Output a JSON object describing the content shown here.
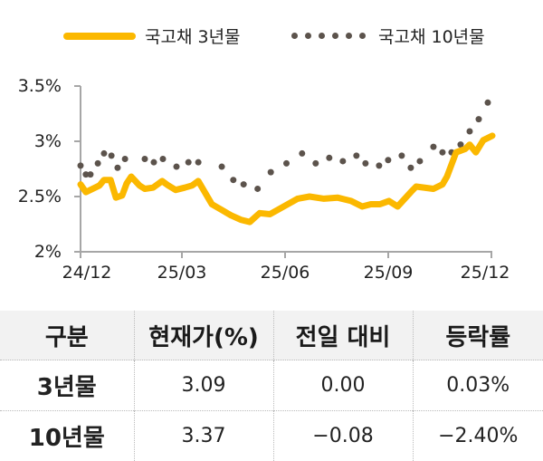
{
  "legend": {
    "series_3y": "국고채 3년물",
    "series_10y": "국고채 10년물"
  },
  "colors": {
    "series_3y": "#FBB800",
    "series_10y": "#5C534C",
    "axis": "#A6A6A6",
    "table_header_bg": "#F2F2F2"
  },
  "chart_data": {
    "type": "line",
    "title": "",
    "xlabel": "",
    "ylabel": "",
    "ylim": [
      2.0,
      3.5
    ],
    "yticks": [
      "2%",
      "2.5%",
      "3%",
      "3.5%"
    ],
    "xticks": [
      "24/12",
      "25/03",
      "25/06",
      "25/09",
      "25/12"
    ],
    "legend_position": "top",
    "grid": false,
    "series": [
      {
        "name": "국고채 3년물",
        "style": "solid",
        "x": [
          0.0,
          0.013,
          0.046,
          0.057,
          0.073,
          0.086,
          0.101,
          0.112,
          0.123,
          0.143,
          0.156,
          0.176,
          0.198,
          0.213,
          0.231,
          0.253,
          0.271,
          0.286,
          0.319,
          0.347,
          0.365,
          0.389,
          0.411,
          0.435,
          0.46,
          0.527,
          0.556,
          0.591,
          0.624,
          0.657,
          0.684,
          0.705,
          0.727,
          0.749,
          0.77,
          0.802,
          0.815,
          0.857,
          0.879,
          0.89,
          0.912,
          0.934,
          0.945,
          0.96,
          0.978,
          1.0
        ],
        "values": [
          2.61,
          2.54,
          2.6,
          2.65,
          2.65,
          2.49,
          2.51,
          2.62,
          2.68,
          2.6,
          2.57,
          2.58,
          2.64,
          2.6,
          2.56,
          2.58,
          2.6,
          2.64,
          2.43,
          2.37,
          2.33,
          2.29,
          2.27,
          2.35,
          2.34,
          2.48,
          2.5,
          2.48,
          2.49,
          2.46,
          2.41,
          2.43,
          2.43,
          2.46,
          2.41,
          2.54,
          2.59,
          2.57,
          2.61,
          2.68,
          2.9,
          2.93,
          2.97,
          2.9,
          3.01,
          3.05
        ]
      },
      {
        "name": "국고채 10년물",
        "style": "dotted",
        "x": [
          0.0,
          0.013,
          0.024,
          0.042,
          0.057,
          0.075,
          0.09,
          0.108,
          0.156,
          0.178,
          0.2,
          0.233,
          0.262,
          0.286,
          0.343,
          0.371,
          0.396,
          0.43,
          0.462,
          0.5,
          0.538,
          0.571,
          0.604,
          0.637,
          0.67,
          0.692,
          0.725,
          0.747,
          0.78,
          0.802,
          0.824,
          0.857,
          0.879,
          0.901,
          0.923,
          0.945,
          0.967,
          0.989
        ],
        "values": [
          2.78,
          2.7,
          2.7,
          2.8,
          2.89,
          2.87,
          2.76,
          2.84,
          2.84,
          2.81,
          2.84,
          2.77,
          2.81,
          2.81,
          2.77,
          2.65,
          2.61,
          2.57,
          2.72,
          2.8,
          2.89,
          2.8,
          2.85,
          2.82,
          2.87,
          2.8,
          2.78,
          2.83,
          2.87,
          2.76,
          2.82,
          2.95,
          2.9,
          2.9,
          2.97,
          3.09,
          3.2,
          3.35
        ]
      }
    ]
  },
  "table": {
    "headers": [
      "구분",
      "현재가(%)",
      "전일 대비",
      "등락률"
    ],
    "rows": [
      {
        "label": "3년물",
        "price": "3.09",
        "change": "0.00",
        "rate": "0.03%"
      },
      {
        "label": "10년물",
        "price": "3.37",
        "change": "−0.08",
        "rate": "−2.40%"
      }
    ]
  }
}
